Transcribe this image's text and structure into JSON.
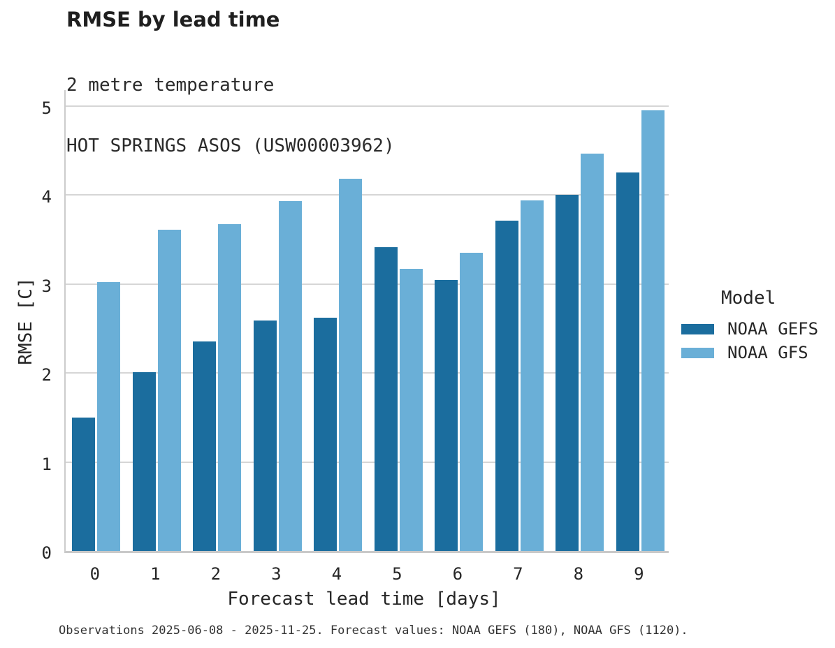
{
  "page": {
    "title": "RMSE by lead time",
    "subtitle_line1": "2 metre temperature",
    "subtitle_line2": "HOT SPRINGS ASOS (USW00003962)",
    "caption": "Observations 2025-06-08 - 2025-11-25. Forecast values: NOAA GEFS (180), NOAA GFS (1120)."
  },
  "legend": {
    "title": "Model",
    "entries": [
      {
        "label": "NOAA GEFS",
        "color": "#1b6d9e"
      },
      {
        "label": "NOAA GFS",
        "color": "#6aafd7"
      }
    ]
  },
  "chart_data": {
    "type": "bar",
    "title": "RMSE by lead time",
    "subtitle": "2 metre temperature | HOT SPRINGS ASOS (USW00003962)",
    "xlabel": "Forecast lead time [days]",
    "ylabel": "RMSE [C]",
    "categories": [
      "0",
      "1",
      "2",
      "3",
      "4",
      "5",
      "6",
      "7",
      "8",
      "9"
    ],
    "series": [
      {
        "name": "NOAA GEFS",
        "color": "#1b6d9e",
        "values": [
          1.5,
          2.01,
          2.35,
          2.59,
          2.62,
          3.41,
          3.04,
          3.71,
          4.0,
          4.25
        ]
      },
      {
        "name": "NOAA GFS",
        "color": "#6aafd7",
        "values": [
          3.02,
          3.61,
          3.67,
          3.93,
          4.18,
          3.17,
          3.35,
          3.94,
          4.46,
          4.95
        ]
      }
    ],
    "ylim": [
      0,
      5.2
    ],
    "yticks": [
      0,
      1,
      2,
      3,
      4,
      5
    ],
    "grid": true,
    "legend_title": "Model",
    "legend_position": "right",
    "caption": "Observations 2025-06-08 - 2025-11-25. Forecast values: NOAA GEFS (180), NOAA GFS (1120)."
  },
  "colors": {
    "grid": "#d6d6d6",
    "spine": "#cccccc",
    "bar_dark": "#1b6d9e",
    "bar_light": "#6aafd7"
  }
}
